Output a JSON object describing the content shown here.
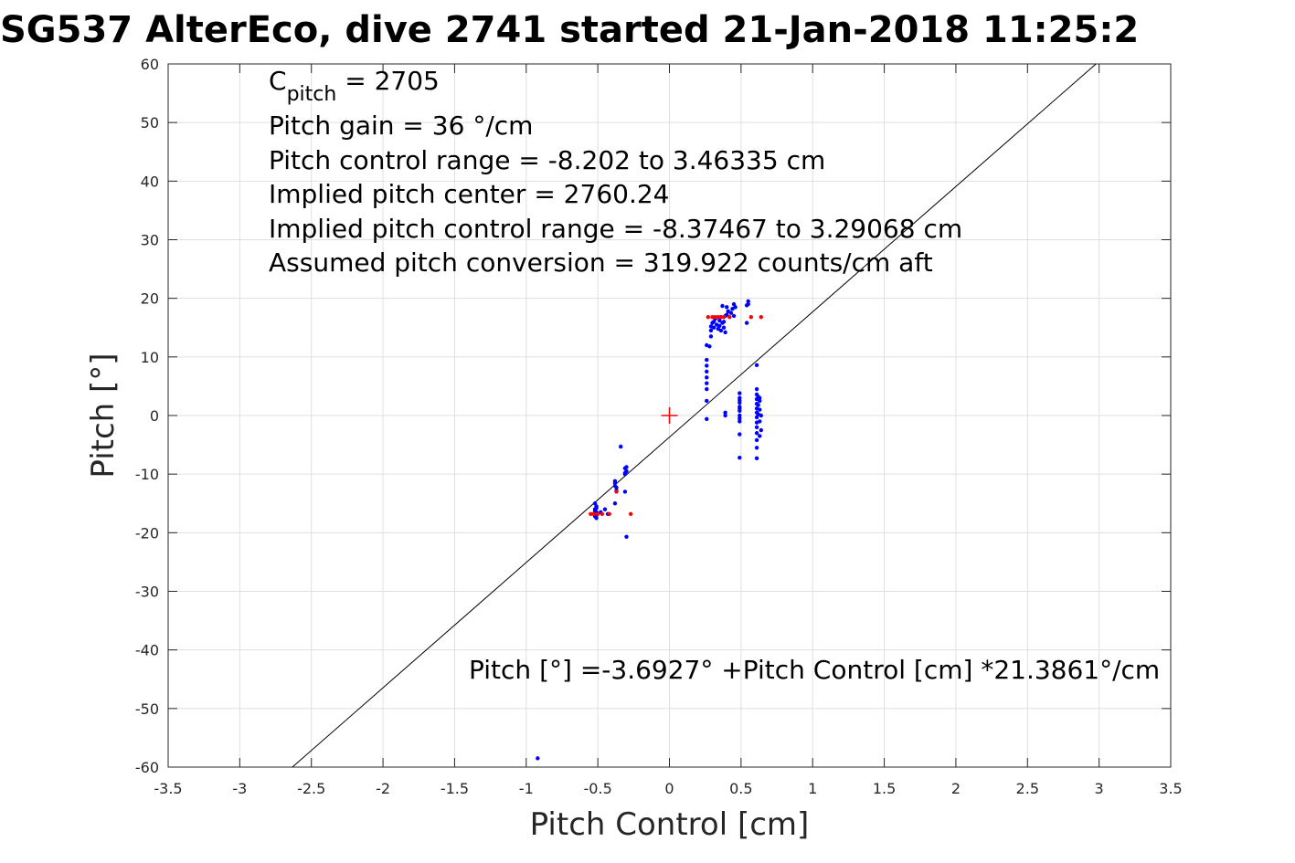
{
  "chart_data": {
    "type": "scatter",
    "title": "SG537 AlterEco, dive 2741 started 21-Jan-2018 11:25:2",
    "xlabel": "Pitch Control [cm]",
    "ylabel": "Pitch [°]",
    "xlim": [
      -3.5,
      3.5
    ],
    "ylim": [
      -60,
      60
    ],
    "xticks": [
      "-3.5",
      "-3",
      "-2.5",
      "-2",
      "-1.5",
      "-1",
      "-0.5",
      "0",
      "0.5",
      "1",
      "1.5",
      "2",
      "2.5",
      "3",
      "3.5"
    ],
    "yticks": [
      "60",
      "50",
      "40",
      "30",
      "20",
      "10",
      "0",
      "-10",
      "-20",
      "-30",
      "-40",
      "-50",
      "-60"
    ],
    "grid": true,
    "annotations": {
      "cpitch_base": "C",
      "cpitch_sub": "pitch",
      "cpitch_value": " = 2705",
      "gain": "Pitch gain = 36 °/cm",
      "range": "Pitch control range = -8.202 to 3.46335 cm",
      "center": "Implied pitch center = 2760.24",
      "implied_range": "Implied pitch control range = -8.37467 to 3.29068 cm",
      "conversion": "Assumed pitch conversion = 319.922 counts/cm aft",
      "fit": "Pitch [°] =-3.6927° +Pitch Control [cm] *21.3861°/cm"
    },
    "fit_line": {
      "intercept": -3.6927,
      "slope": 21.3861,
      "color": "#000000"
    },
    "center_marker": {
      "x": 0,
      "y": 0,
      "color": "#ff0000"
    },
    "series": [
      {
        "color": "#0000ff",
        "points": [
          [
            -0.52,
            -16.8
          ],
          [
            -0.52,
            -17.2
          ],
          [
            -0.51,
            -17.5
          ],
          [
            -0.51,
            -16.5
          ],
          [
            -0.52,
            -16.0
          ],
          [
            -0.51,
            -15.5
          ],
          [
            -0.52,
            -15.0
          ],
          [
            -0.51,
            -17.0
          ],
          [
            -0.52,
            -16.3
          ],
          [
            -0.51,
            -15.8
          ],
          [
            -0.48,
            -16.5
          ],
          [
            -0.45,
            -16.0
          ],
          [
            -0.43,
            -16.8
          ],
          [
            -0.38,
            -12.0
          ],
          [
            -0.38,
            -11.5
          ],
          [
            -0.37,
            -12.8
          ],
          [
            -0.38,
            -11.2
          ],
          [
            -0.37,
            -12.3
          ],
          [
            -0.38,
            -15.0
          ],
          [
            -0.34,
            -5.3
          ],
          [
            -0.31,
            -9.0
          ],
          [
            -0.3,
            -9.5
          ],
          [
            -0.31,
            -10.0
          ],
          [
            -0.3,
            -8.8
          ],
          [
            -0.31,
            -9.8
          ],
          [
            -0.31,
            -13.0
          ],
          [
            -0.3,
            -20.7
          ],
          [
            0.26,
            -0.6
          ],
          [
            0.26,
            2.5
          ],
          [
            0.26,
            4.5
          ],
          [
            0.26,
            5.5
          ],
          [
            0.26,
            6.5
          ],
          [
            0.26,
            7.5
          ],
          [
            0.26,
            8.5
          ],
          [
            0.26,
            9.5
          ],
          [
            0.26,
            12.0
          ],
          [
            0.28,
            11.8
          ],
          [
            0.29,
            13.5
          ],
          [
            0.29,
            14.5
          ],
          [
            0.29,
            15.2
          ],
          [
            0.3,
            15.8
          ],
          [
            0.31,
            16.0
          ],
          [
            0.31,
            15.0
          ],
          [
            0.32,
            16.5
          ],
          [
            0.33,
            15.5
          ],
          [
            0.34,
            14.8
          ],
          [
            0.35,
            16.2
          ],
          [
            0.35,
            15.3
          ],
          [
            0.36,
            16.8
          ],
          [
            0.36,
            14.5
          ],
          [
            0.37,
            15.8
          ],
          [
            0.37,
            18.7
          ],
          [
            0.38,
            16.0
          ],
          [
            0.38,
            15.0
          ],
          [
            0.39,
            14.2
          ],
          [
            0.39,
            17.0
          ],
          [
            0.4,
            17.2
          ],
          [
            0.4,
            18.5
          ],
          [
            0.41,
            17.8
          ],
          [
            0.43,
            17.5
          ],
          [
            0.44,
            18.2
          ],
          [
            0.45,
            19.0
          ],
          [
            0.45,
            17.0
          ],
          [
            0.46,
            18.5
          ],
          [
            0.54,
            18.8
          ],
          [
            0.55,
            19.5
          ],
          [
            0.55,
            19.0
          ],
          [
            0.54,
            15.8
          ],
          [
            0.39,
            0.5
          ],
          [
            0.39,
            0.0
          ],
          [
            0.49,
            -7.2
          ],
          [
            0.49,
            -3.2
          ],
          [
            0.49,
            -1.0
          ],
          [
            0.49,
            0.0
          ],
          [
            0.49,
            0.8
          ],
          [
            0.49,
            1.5
          ],
          [
            0.49,
            2.2
          ],
          [
            0.49,
            3.0
          ],
          [
            0.49,
            3.8
          ],
          [
            0.49,
            -0.5
          ],
          [
            0.49,
            1.2
          ],
          [
            0.49,
            2.6
          ],
          [
            0.61,
            8.6
          ],
          [
            0.61,
            4.5
          ],
          [
            0.61,
            3.6
          ],
          [
            0.61,
            2.8
          ],
          [
            0.61,
            2.0
          ],
          [
            0.61,
            1.2
          ],
          [
            0.61,
            0.5
          ],
          [
            0.61,
            -0.3
          ],
          [
            0.61,
            -1.2
          ],
          [
            0.61,
            -2.0
          ],
          [
            0.61,
            -3.0
          ],
          [
            0.61,
            -4.2
          ],
          [
            0.61,
            -5.5
          ],
          [
            0.61,
            -7.3
          ],
          [
            0.62,
            3.2
          ],
          [
            0.62,
            1.8
          ],
          [
            0.62,
            0.2
          ],
          [
            0.63,
            2.5
          ],
          [
            0.63,
            -1.0
          ],
          [
            0.63,
            -3.5
          ],
          [
            0.63,
            1.0
          ],
          [
            0.63,
            3.0
          ],
          [
            0.64,
            0.0
          ],
          [
            0.64,
            -2.5
          ],
          [
            -0.92,
            -58.5
          ]
        ]
      },
      {
        "color": "#ff0000",
        "points": [
          [
            -0.55,
            -16.8
          ],
          [
            -0.53,
            -16.8
          ],
          [
            -0.5,
            -16.8
          ],
          [
            -0.47,
            -16.8
          ],
          [
            -0.42,
            -16.8
          ],
          [
            -0.37,
            -13.0
          ],
          [
            -0.27,
            -16.8
          ],
          [
            0.27,
            16.8
          ],
          [
            0.3,
            16.8
          ],
          [
            0.32,
            16.8
          ],
          [
            0.34,
            16.8
          ],
          [
            0.36,
            16.8
          ],
          [
            0.38,
            16.8
          ],
          [
            0.42,
            16.8
          ],
          [
            0.57,
            16.8
          ],
          [
            0.64,
            16.8
          ]
        ]
      }
    ]
  }
}
